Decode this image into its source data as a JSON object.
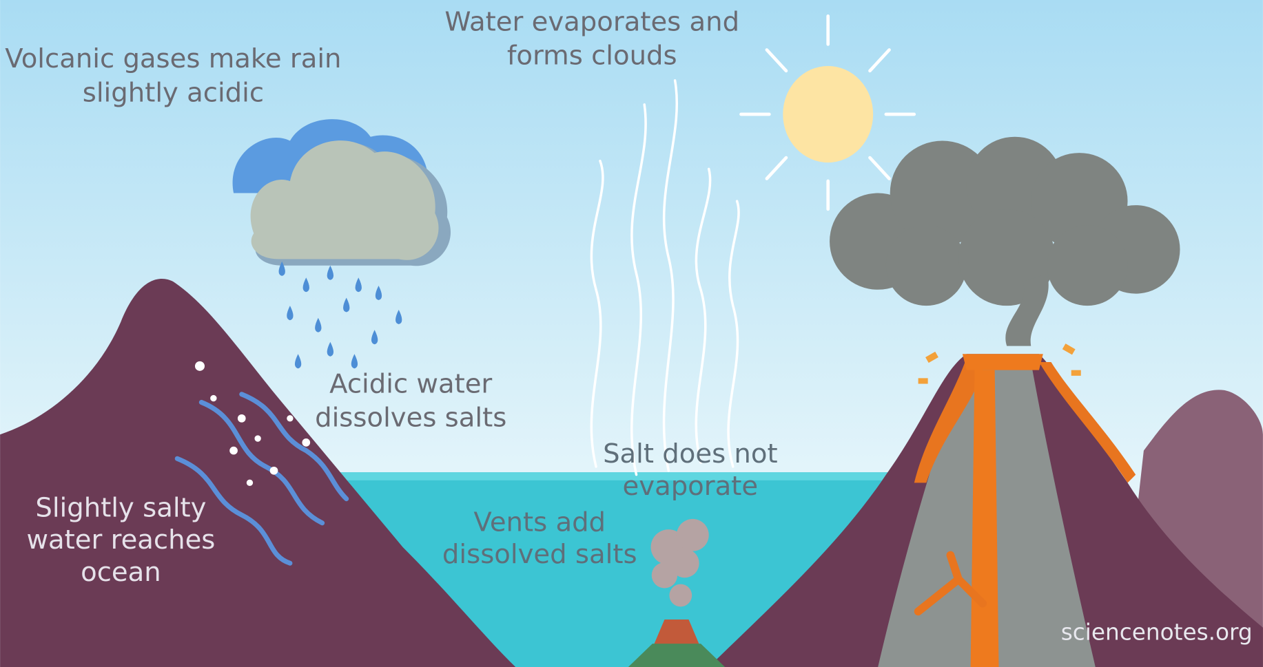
{
  "labels": [
    {
      "lines": [
        "Water evaporates and",
        "forms clouds"
      ]
    },
    {
      "lines": [
        "Volcanic gases make rain",
        "slightly acidic"
      ]
    },
    {
      "lines": [
        "Acidic water",
        "dissolves salts"
      ]
    },
    {
      "lines": [
        "Salt does not",
        "evaporate"
      ]
    },
    {
      "lines": [
        "Vents add",
        "dissolved salts"
      ]
    },
    {
      "lines": [
        "Slightly salty",
        "water reaches",
        "ocean"
      ]
    }
  ],
  "credit": "sciencenotes.org"
}
